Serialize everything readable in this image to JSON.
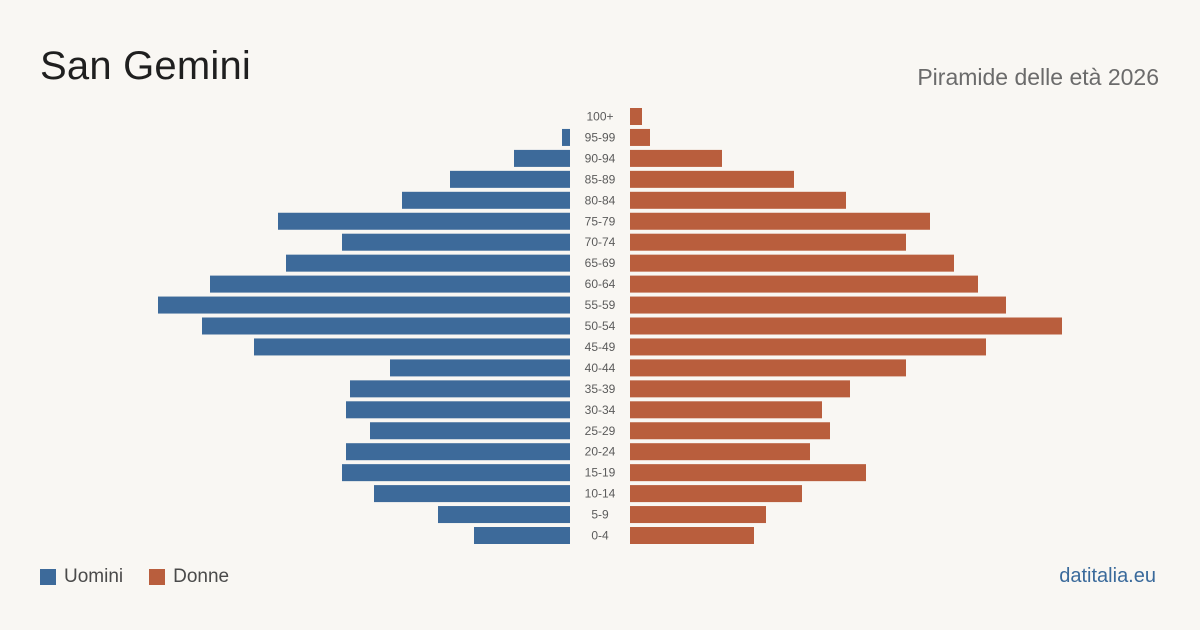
{
  "header": {
    "title": "San Gemini",
    "subtitle": "Piramide delle età 2026"
  },
  "footer": {
    "source": "datitalia.eu"
  },
  "colors": {
    "men": "#3d6a9a",
    "women": "#b95e3d",
    "background": "#f9f7f3"
  },
  "chart_data": {
    "type": "bar",
    "orientation": "horizontal-pyramid",
    "title": "San Gemini",
    "subtitle": "Piramide delle età 2026",
    "categories": [
      "100+",
      "95-99",
      "90-94",
      "85-89",
      "80-84",
      "75-79",
      "70-74",
      "65-69",
      "60-64",
      "55-59",
      "50-54",
      "45-49",
      "40-44",
      "35-39",
      "30-34",
      "25-29",
      "20-24",
      "15-19",
      "10-14",
      "5-9",
      "0-4"
    ],
    "series": [
      {
        "name": "Uomini",
        "color": "#3d6a9a",
        "values": [
          0,
          2,
          14,
          30,
          42,
          73,
          57,
          71,
          90,
          103,
          92,
          79,
          45,
          55,
          56,
          50,
          56,
          57,
          49,
          33,
          24
        ]
      },
      {
        "name": "Donne",
        "color": "#b95e3d",
        "values": [
          3,
          5,
          23,
          41,
          54,
          75,
          69,
          81,
          87,
          94,
          108,
          89,
          69,
          55,
          48,
          50,
          45,
          59,
          43,
          34,
          31
        ]
      }
    ],
    "legend": {
      "position": "bottom-left",
      "entries": [
        "Uomini",
        "Donne"
      ]
    },
    "grid": false
  }
}
